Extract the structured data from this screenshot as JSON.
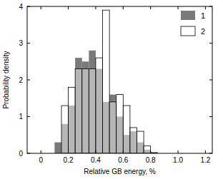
{
  "chart_data": {
    "type": "histogram",
    "x_label": "Relative GB energy, %",
    "y_label": "Probability density",
    "bins": [
      0.1,
      0.15,
      0.2,
      0.25,
      0.3,
      0.35,
      0.4,
      0.45,
      0.5,
      0.55,
      0.6,
      0.65,
      0.7,
      0.75,
      0.8,
      0.85,
      0.9
    ],
    "series": [
      {
        "name": "1",
        "color": "#7a7a7a",
        "values": [
          0.3,
          0.8,
          1.3,
          2.6,
          2.5,
          2.8,
          2.3,
          1.4,
          1.6,
          1.0,
          0.5,
          0.6,
          0.3,
          0.1,
          0.02,
          0
        ]
      },
      {
        "name": "2",
        "color": "#ffffff",
        "values": [
          0,
          1.3,
          1.8,
          2.3,
          2.3,
          2.3,
          2.6,
          3.9,
          1.4,
          1.6,
          1.3,
          0.7,
          0.6,
          0.2,
          0.02,
          0
        ]
      }
    ],
    "xlim": [
      -0.1,
      1.25
    ],
    "ylim": [
      0,
      4
    ],
    "xticks": [
      0,
      0.2,
      0.4,
      0.6,
      0.8,
      {
        "value": 1.0,
        "label": "1.0"
      },
      1.2
    ],
    "yticks": [
      0,
      1,
      2,
      3,
      4
    ],
    "legend": "upper right",
    "grid": false
  }
}
